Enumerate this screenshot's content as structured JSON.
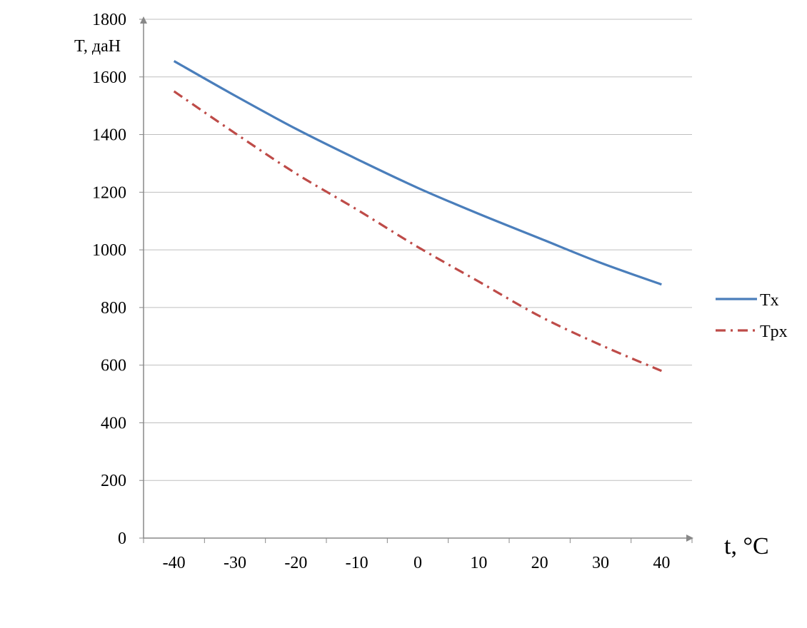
{
  "chart_data": {
    "type": "line",
    "title": "",
    "xlabel": "t, °C",
    "ylabel": "T, даН",
    "categories": [
      "-40",
      "-30",
      "-20",
      "-10",
      "0",
      "10",
      "20",
      "30",
      "40"
    ],
    "y_ticks": [
      "0",
      "200",
      "400",
      "600",
      "800",
      "1000",
      "1200",
      "1400",
      "1600",
      "1800"
    ],
    "ylim": [
      0,
      1800
    ],
    "grid": "horizontal",
    "legend_position": "right",
    "series": [
      {
        "name": "Tx",
        "color": "#4a7ebb",
        "dash": "solid",
        "points": [
          {
            "x": "-40",
            "y": 1655
          },
          {
            "x": "-30",
            "y": 1535
          },
          {
            "x": "-20",
            "y": 1420
          },
          {
            "x": "-10",
            "y": 1315
          },
          {
            "x": "0",
            "y": 1215
          },
          {
            "x": "10",
            "y": 1125
          },
          {
            "x": "20",
            "y": 1040
          },
          {
            "x": "30",
            "y": 955
          },
          {
            "x": "40",
            "y": 880
          }
        ]
      },
      {
        "name": "Tpx",
        "color": "#be4b48",
        "dash": "dash-dot",
        "points": [
          {
            "x": "-40",
            "y": 1550
          },
          {
            "x": "-30",
            "y": 1405
          },
          {
            "x": "-20",
            "y": 1265
          },
          {
            "x": "-10",
            "y": 1140
          },
          {
            "x": "0",
            "y": 1010
          },
          {
            "x": "10",
            "y": 890
          },
          {
            "x": "20",
            "y": 770
          },
          {
            "x": "30",
            "y": 670
          },
          {
            "x": "40",
            "y": 580
          }
        ]
      }
    ]
  }
}
